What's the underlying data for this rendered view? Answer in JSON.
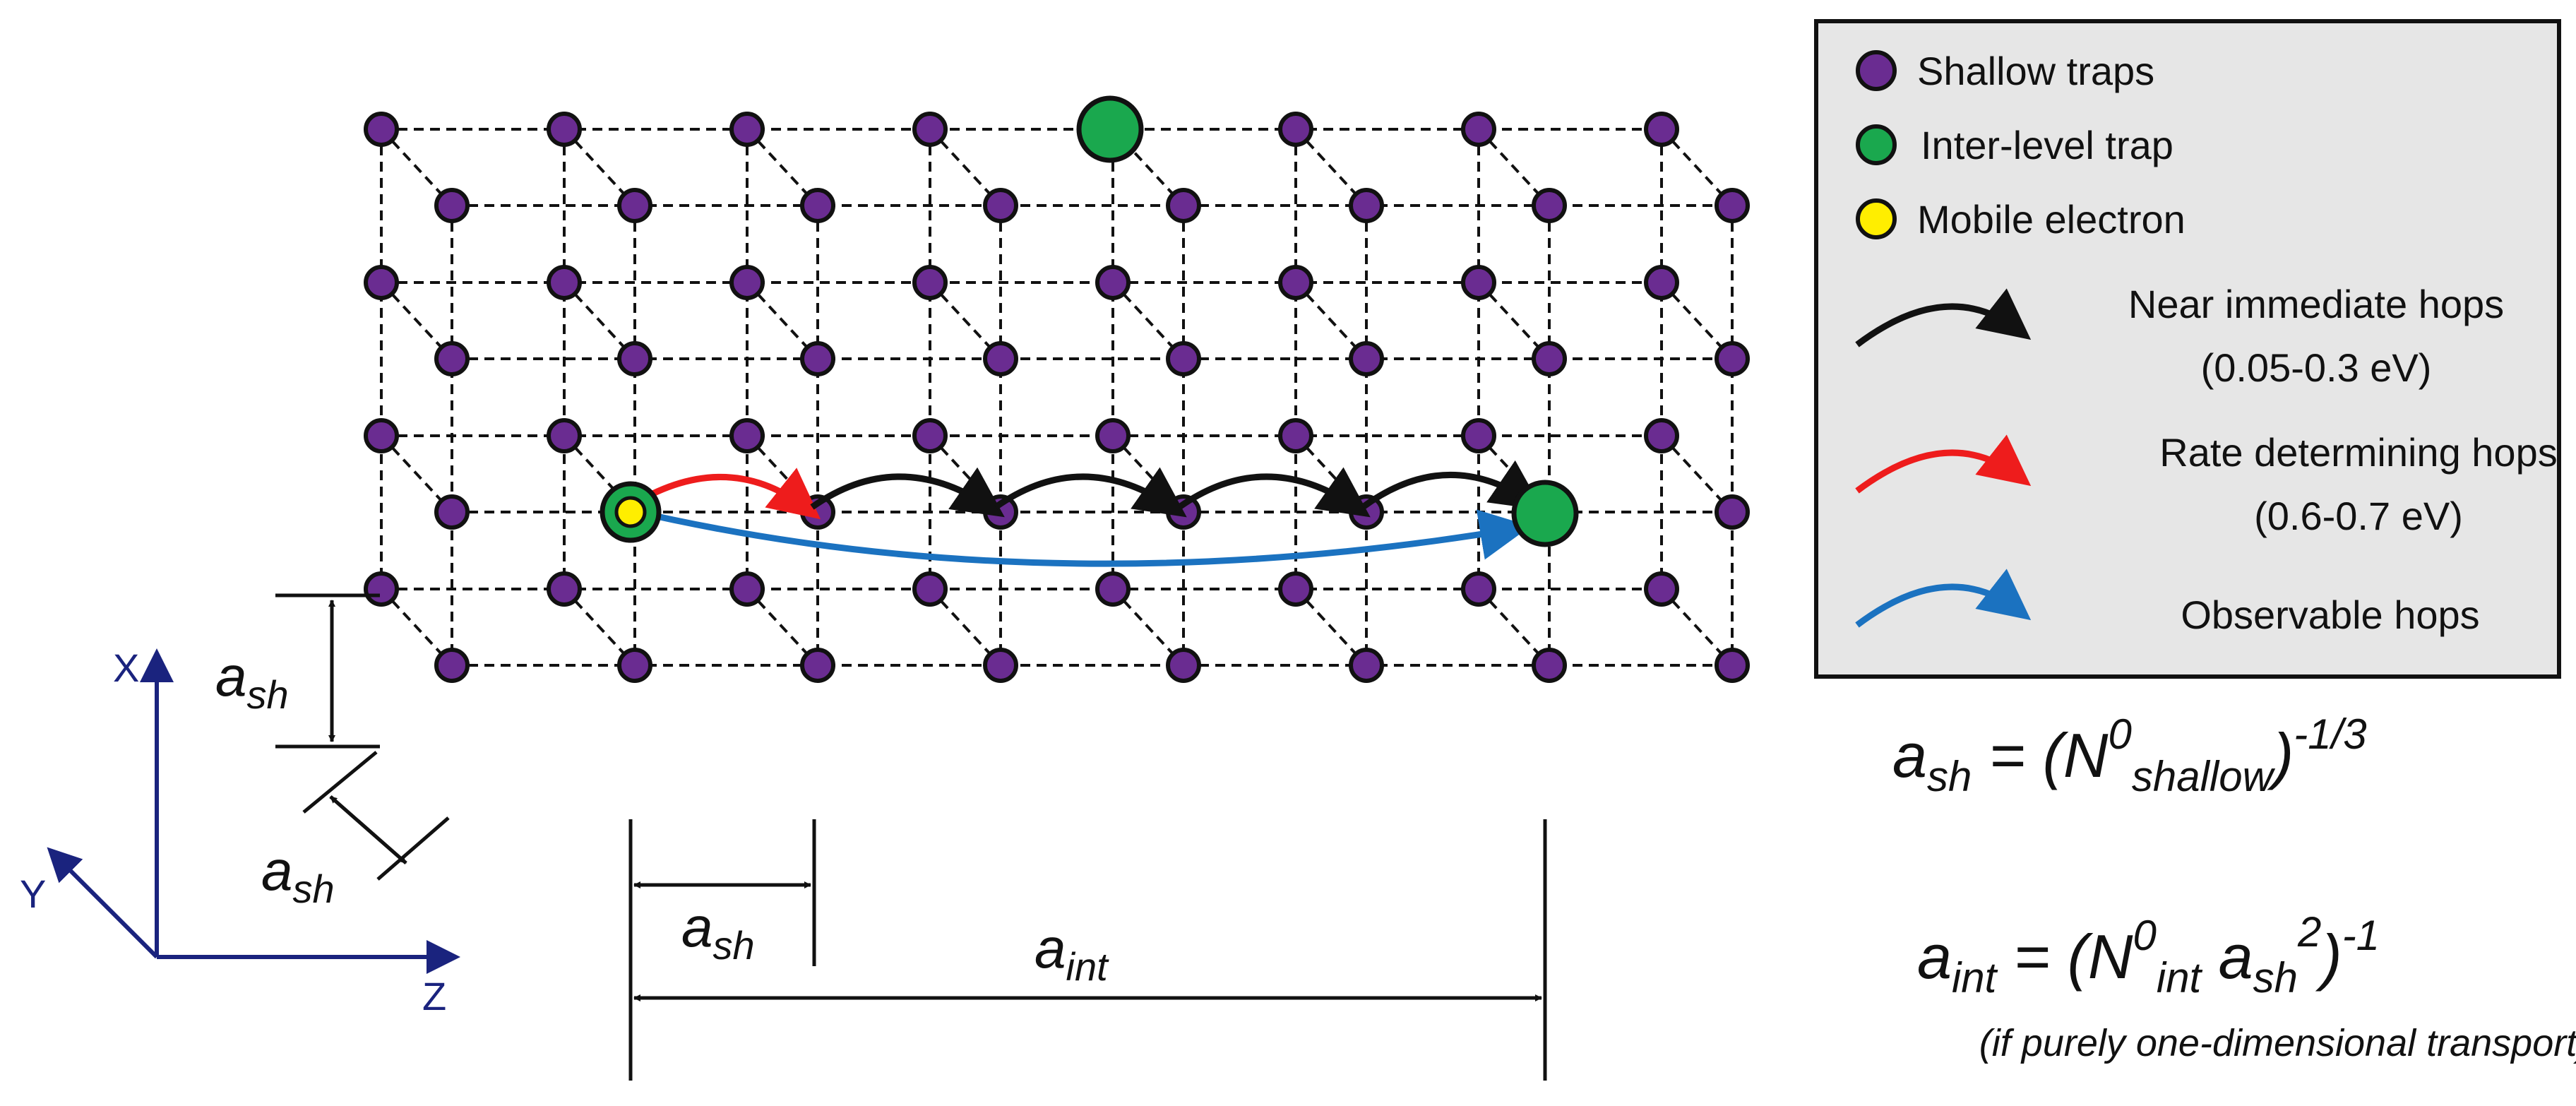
{
  "legend": {
    "shallow": "Shallow traps",
    "interlevel": "Inter-level trap",
    "mobile": "Mobile electron",
    "near_title": "Near immediate hops",
    "near_range": "(0.05-0.3 eV)",
    "rate_title": "Rate determining hops",
    "rate_range": "(0.6-0.7 eV)",
    "observable": "Observable hops"
  },
  "axes": {
    "x": "X",
    "y": "Y",
    "z": "Z"
  },
  "dims": {
    "a": "a",
    "sh": "sh",
    "int": "int"
  },
  "eq1": {
    "a": "a",
    "sub": "sh",
    "eq": " = (N",
    "sup0": "0",
    "sub2": "shallow",
    "close": ")",
    "exp": "-1/3"
  },
  "eq2": {
    "a": "a",
    "sub": "int",
    "eq": " = (N",
    "sup0": "0",
    "sub2": "int",
    "a2": " a",
    "sub3": "sh",
    "sq": "2",
    "close": ")",
    "exp": "-1"
  },
  "eq_note": "(if purely one-dimensional transport)",
  "colors": {
    "shallow": "#6a2c91",
    "interlevel": "#1aa84e",
    "mobile": "#ffee00",
    "near_hop": "#111111",
    "rate_hop": "#ee1c1c",
    "observable_hop": "#1b72c0",
    "legend_bg": "#e6e6e6",
    "axis": "#1a237e"
  }
}
